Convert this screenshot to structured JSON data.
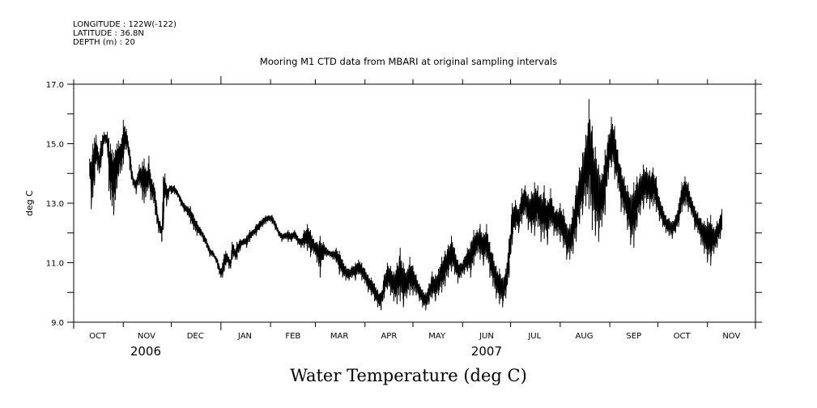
{
  "header": {
    "longitude": "LONGITUDE : 122W(-122)",
    "latitude": "LATITUDE : 36.8N",
    "depth": "DEPTH (m) : 20"
  },
  "chart_data": {
    "type": "line",
    "title": "Mooring M1 CTD data from MBARI at original sampling intervals",
    "xlabel": "Water Temperature (deg C)",
    "ylabel": "deg C",
    "ylim": [
      9.0,
      17.0
    ],
    "yticks": [
      "9.0",
      "11.0",
      "13.0",
      "15.0",
      "17.0"
    ],
    "yminor_step": 1.0,
    "x_start": "2006-10-01",
    "x_end": "2007-12-01",
    "month_ticks": [
      {
        "label": "OCT",
        "day": 0,
        "mid": 15
      },
      {
        "label": "NOV",
        "day": 31,
        "mid": 45.5
      },
      {
        "label": "DEC",
        "day": 61,
        "mid": 76
      },
      {
        "label": "JAN",
        "day": 92,
        "mid": 107
      },
      {
        "label": "FEB",
        "day": 123,
        "mid": 137
      },
      {
        "label": "MAR",
        "day": 151,
        "mid": 166
      },
      {
        "label": "APR",
        "day": 182,
        "mid": 197
      },
      {
        "label": "MAY",
        "day": 212,
        "mid": 227
      },
      {
        "label": "JUN",
        "day": 243,
        "mid": 258
      },
      {
        "label": "JUL",
        "day": 273,
        "mid": 288
      },
      {
        "label": "AUG",
        "day": 304,
        "mid": 319
      },
      {
        "label": "SEP",
        "day": 335,
        "mid": 350
      },
      {
        "label": "OCT",
        "day": 365,
        "mid": 380
      },
      {
        "label": "NOV",
        "day": 396,
        "mid": 411
      },
      {
        "label": "",
        "day": 426,
        "mid": 426
      }
    ],
    "year_labels": [
      {
        "label": "2006",
        "day": 45
      },
      {
        "label": "2007",
        "day": 258
      }
    ],
    "series": [
      {
        "name": "Water Temperature",
        "unit": "deg C",
        "envelope_note": "day offset from 2006-10-01, [day, low, high]",
        "points": [
          [
            10,
            13.9,
            14.5
          ],
          [
            11,
            12.8,
            14.4
          ],
          [
            12,
            13.2,
            15.0
          ],
          [
            13,
            13.6,
            15.2
          ],
          [
            14,
            14.3,
            15.3
          ],
          [
            15,
            14.1,
            14.9
          ],
          [
            16,
            14.0,
            14.6
          ],
          [
            17,
            14.2,
            15.1
          ],
          [
            18,
            14.6,
            15.3
          ],
          [
            19,
            15.0,
            15.4
          ],
          [
            20,
            15.0,
            15.3
          ],
          [
            21,
            14.9,
            15.4
          ],
          [
            22,
            13.4,
            15.2
          ],
          [
            23,
            13.1,
            15.0
          ],
          [
            24,
            12.9,
            14.8
          ],
          [
            25,
            12.6,
            14.7
          ],
          [
            26,
            13.1,
            14.8
          ],
          [
            27,
            13.5,
            15.0
          ],
          [
            28,
            13.9,
            15.1
          ],
          [
            29,
            14.0,
            15.0
          ],
          [
            30,
            14.1,
            15.2
          ],
          [
            31,
            14.3,
            15.8
          ],
          [
            32,
            14.8,
            15.6
          ],
          [
            33,
            14.8,
            15.5
          ],
          [
            34,
            14.7,
            15.1
          ],
          [
            35,
            14.1,
            14.8
          ],
          [
            36,
            13.8,
            14.3
          ],
          [
            37,
            13.6,
            13.9
          ],
          [
            38,
            13.5,
            13.8
          ],
          [
            39,
            13.3,
            13.8
          ],
          [
            40,
            13.6,
            14.0
          ],
          [
            41,
            13.6,
            14.3
          ],
          [
            42,
            13.5,
            14.2
          ],
          [
            43,
            13.1,
            14.4
          ],
          [
            44,
            13.0,
            14.5
          ],
          [
            45,
            13.2,
            14.2
          ],
          [
            46,
            13.4,
            14.1
          ],
          [
            47,
            13.5,
            14.6
          ],
          [
            48,
            13.1,
            14.0
          ],
          [
            49,
            13.1,
            13.8
          ],
          [
            50,
            13.0,
            13.7
          ],
          [
            51,
            12.6,
            13.4
          ],
          [
            52,
            12.3,
            12.9
          ],
          [
            53,
            12.0,
            12.5
          ],
          [
            54,
            12.0,
            12.4
          ],
          [
            55,
            11.7,
            12.2
          ],
          [
            56,
            12.1,
            13.9
          ],
          [
            57,
            13.2,
            14.0
          ],
          [
            58,
            12.9,
            13.6
          ],
          [
            59,
            13.1,
            13.5
          ],
          [
            60,
            13.4,
            13.6
          ],
          [
            61,
            13.3,
            13.6
          ],
          [
            63,
            13.3,
            13.6
          ],
          [
            65,
            13.2,
            13.4
          ],
          [
            67,
            12.9,
            13.2
          ],
          [
            69,
            12.7,
            13.0
          ],
          [
            71,
            12.6,
            12.9
          ],
          [
            73,
            12.3,
            12.9
          ],
          [
            75,
            12.1,
            12.6
          ],
          [
            77,
            11.9,
            12.4
          ],
          [
            79,
            11.9,
            12.2
          ],
          [
            81,
            11.7,
            12.0
          ],
          [
            83,
            11.5,
            11.8
          ],
          [
            85,
            11.2,
            11.5
          ],
          [
            87,
            11.2,
            11.4
          ],
          [
            89,
            11.0,
            11.2
          ],
          [
            90,
            10.8,
            11.1
          ],
          [
            91,
            10.6,
            10.9
          ],
          [
            92,
            10.5,
            10.8
          ],
          [
            93,
            10.5,
            11.0
          ],
          [
            94,
            10.7,
            11.3
          ],
          [
            95,
            10.9,
            11.4
          ],
          [
            96,
            11.0,
            11.3
          ],
          [
            97,
            10.8,
            11.2
          ],
          [
            98,
            10.8,
            11.1
          ],
          [
            99,
            11.1,
            11.7
          ],
          [
            100,
            11.2,
            11.6
          ],
          [
            101,
            11.1,
            11.4
          ],
          [
            102,
            11.1,
            11.7
          ],
          [
            104,
            11.4,
            11.8
          ],
          [
            106,
            11.6,
            11.8
          ],
          [
            108,
            11.5,
            11.9
          ],
          [
            110,
            11.7,
            12.1
          ],
          [
            112,
            11.9,
            12.1
          ],
          [
            114,
            11.9,
            12.3
          ],
          [
            116,
            12.1,
            12.4
          ],
          [
            118,
            12.2,
            12.5
          ],
          [
            120,
            12.3,
            12.6
          ],
          [
            122,
            12.4,
            12.6
          ],
          [
            124,
            12.3,
            12.6
          ],
          [
            126,
            12.1,
            12.4
          ],
          [
            128,
            11.9,
            12.1
          ],
          [
            130,
            11.7,
            12.0
          ],
          [
            132,
            11.8,
            12.0
          ],
          [
            134,
            11.7,
            12.1
          ],
          [
            136,
            11.7,
            12.0
          ],
          [
            138,
            11.8,
            12.1
          ],
          [
            140,
            11.6,
            11.9
          ],
          [
            142,
            11.5,
            11.8
          ],
          [
            144,
            11.5,
            12.1
          ],
          [
            146,
            11.4,
            12.3
          ],
          [
            148,
            11.2,
            12.1
          ],
          [
            150,
            11.3,
            11.8
          ],
          [
            152,
            11.0,
            11.7
          ],
          [
            154,
            10.5,
            11.9
          ],
          [
            156,
            11.1,
            11.7
          ],
          [
            158,
            11.2,
            11.5
          ],
          [
            160,
            11.2,
            11.4
          ],
          [
            162,
            11.1,
            11.4
          ],
          [
            164,
            11.0,
            11.5
          ],
          [
            166,
            10.6,
            11.4
          ],
          [
            168,
            10.5,
            11.1
          ],
          [
            170,
            10.4,
            10.9
          ],
          [
            172,
            10.4,
            10.8
          ],
          [
            174,
            10.5,
            10.9
          ],
          [
            176,
            10.4,
            11.0
          ],
          [
            178,
            10.6,
            11.1
          ],
          [
            180,
            10.4,
            11.0
          ],
          [
            182,
            10.3,
            10.8
          ],
          [
            184,
            10.0,
            10.6
          ],
          [
            186,
            9.9,
            10.5
          ],
          [
            188,
            9.7,
            10.3
          ],
          [
            190,
            9.5,
            10.1
          ],
          [
            192,
            9.4,
            10.0
          ],
          [
            194,
            9.8,
            10.6
          ],
          [
            196,
            10.1,
            11.0
          ],
          [
            198,
            9.9,
            10.9
          ],
          [
            200,
            9.7,
            10.7
          ],
          [
            202,
            9.6,
            11.0
          ],
          [
            204,
            9.7,
            11.5
          ],
          [
            206,
            9.5,
            11.0
          ],
          [
            208,
            9.8,
            10.7
          ],
          [
            210,
            9.9,
            11.2
          ],
          [
            212,
            9.9,
            10.9
          ],
          [
            214,
            9.9,
            10.6
          ],
          [
            216,
            9.7,
            10.3
          ],
          [
            218,
            9.5,
            10.1
          ],
          [
            220,
            9.4,
            10.0
          ],
          [
            222,
            9.6,
            10.3
          ],
          [
            224,
            9.8,
            10.7
          ],
          [
            226,
            9.7,
            10.6
          ],
          [
            228,
            9.9,
            10.8
          ],
          [
            230,
            10.0,
            11.2
          ],
          [
            232,
            10.2,
            11.4
          ],
          [
            234,
            10.5,
            11.6
          ],
          [
            236,
            10.7,
            11.9
          ],
          [
            238,
            10.6,
            11.5
          ],
          [
            240,
            10.3,
            11.1
          ],
          [
            242,
            10.5,
            11.0
          ],
          [
            244,
            10.6,
            11.2
          ],
          [
            246,
            10.7,
            11.5
          ],
          [
            248,
            10.5,
            11.7
          ],
          [
            250,
            10.9,
            12.1
          ],
          [
            252,
            11.3,
            12.1
          ],
          [
            254,
            11.1,
            12.3
          ],
          [
            256,
            10.9,
            12.0
          ],
          [
            258,
            11.1,
            12.3
          ],
          [
            260,
            10.5,
            11.7
          ],
          [
            262,
            10.2,
            11.3
          ],
          [
            264,
            9.8,
            10.9
          ],
          [
            266,
            9.6,
            10.8
          ],
          [
            268,
            9.5,
            10.5
          ],
          [
            270,
            9.8,
            10.8
          ],
          [
            272,
            10.5,
            11.8
          ],
          [
            274,
            11.6,
            13.0
          ],
          [
            276,
            12.1,
            13.1
          ],
          [
            278,
            12.0,
            12.8
          ],
          [
            280,
            12.3,
            13.5
          ],
          [
            282,
            12.6,
            13.6
          ],
          [
            284,
            12.1,
            13.3
          ],
          [
            286,
            12.0,
            13.4
          ],
          [
            288,
            11.9,
            13.7
          ],
          [
            290,
            12.2,
            13.6
          ],
          [
            292,
            11.7,
            13.3
          ],
          [
            294,
            11.8,
            13.6
          ],
          [
            296,
            11.6,
            13.1
          ],
          [
            298,
            12.2,
            13.5
          ],
          [
            300,
            11.9,
            12.9
          ],
          [
            302,
            11.9,
            12.8
          ],
          [
            304,
            11.7,
            13.0
          ],
          [
            306,
            11.5,
            12.8
          ],
          [
            308,
            11.1,
            12.3
          ],
          [
            310,
            11.1,
            12.3
          ],
          [
            312,
            11.3,
            12.9
          ],
          [
            314,
            11.7,
            13.6
          ],
          [
            316,
            12.3,
            14.2
          ],
          [
            318,
            12.6,
            14.7
          ],
          [
            320,
            12.9,
            15.3
          ],
          [
            322,
            12.8,
            16.5
          ],
          [
            324,
            12.1,
            15.6
          ],
          [
            326,
            11.9,
            14.9
          ],
          [
            328,
            11.7,
            14.3
          ],
          [
            330,
            12.2,
            14.0
          ],
          [
            332,
            12.6,
            14.8
          ],
          [
            334,
            13.8,
            15.3
          ],
          [
            336,
            14.2,
            15.9
          ],
          [
            338,
            13.8,
            15.6
          ],
          [
            340,
            13.5,
            14.8
          ],
          [
            342,
            12.7,
            14.2
          ],
          [
            344,
            12.6,
            13.9
          ],
          [
            346,
            12.1,
            13.6
          ],
          [
            348,
            11.6,
            13.3
          ],
          [
            350,
            11.5,
            13.7
          ],
          [
            352,
            12.2,
            13.9
          ],
          [
            354,
            12.6,
            14.0
          ],
          [
            356,
            12.8,
            14.3
          ],
          [
            358,
            13.0,
            14.2
          ],
          [
            360,
            12.8,
            14.1
          ],
          [
            362,
            12.9,
            14.2
          ],
          [
            364,
            12.7,
            13.9
          ],
          [
            366,
            12.4,
            13.2
          ],
          [
            368,
            12.2,
            12.9
          ],
          [
            370,
            12.0,
            12.6
          ],
          [
            372,
            11.9,
            12.5
          ],
          [
            374,
            11.8,
            12.4
          ],
          [
            376,
            12.0,
            12.6
          ],
          [
            378,
            12.2,
            13.0
          ],
          [
            380,
            12.7,
            13.7
          ],
          [
            382,
            12.9,
            13.9
          ],
          [
            384,
            12.7,
            13.7
          ],
          [
            386,
            12.6,
            13.2
          ],
          [
            388,
            12.1,
            12.9
          ],
          [
            390,
            12.0,
            12.7
          ],
          [
            392,
            11.6,
            12.5
          ],
          [
            394,
            11.3,
            12.4
          ],
          [
            396,
            11.0,
            12.5
          ],
          [
            398,
            10.9,
            12.6
          ],
          [
            400,
            11.3,
            12.2
          ],
          [
            402,
            11.5,
            12.4
          ],
          [
            404,
            11.8,
            12.6
          ],
          [
            405,
            12.1,
            12.8
          ]
        ]
      }
    ],
    "grid": false,
    "legend": "none"
  }
}
